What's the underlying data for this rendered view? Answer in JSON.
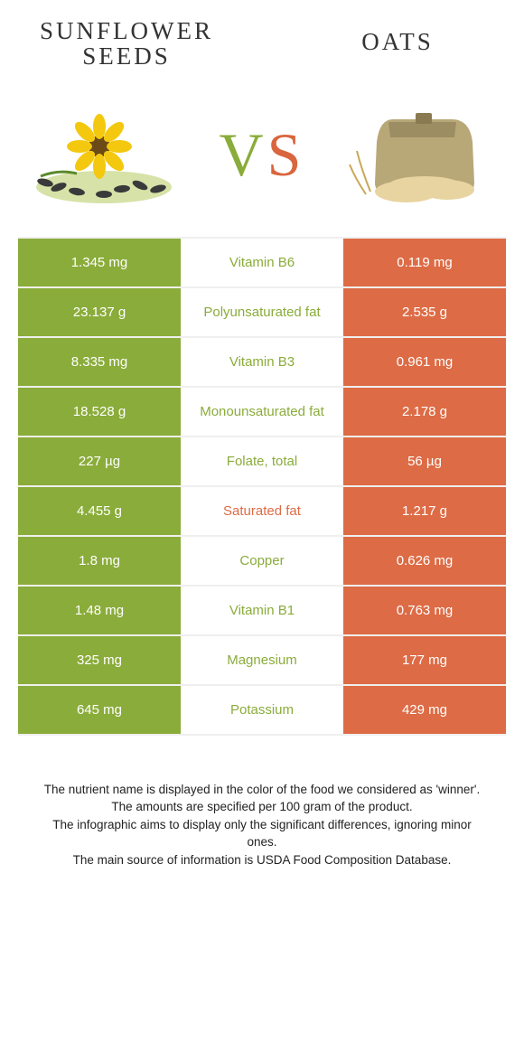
{
  "colors": {
    "green": "#8aac3a",
    "orange": "#dd6b45",
    "vs_green": "#8aac3a",
    "vs_orange": "#d9663e",
    "row_border": "#efefef",
    "text": "#333333"
  },
  "header": {
    "left_title_line1": "SUNFLOWER",
    "left_title_line2": "SEEDS",
    "right_title": "OATS",
    "vs_v": "V",
    "vs_s": "S"
  },
  "rows": [
    {
      "left": "1.345 mg",
      "label": "Vitamin B6",
      "right": "0.119 mg",
      "winner": "green"
    },
    {
      "left": "23.137 g",
      "label": "Polyunsaturated fat",
      "right": "2.535 g",
      "winner": "green"
    },
    {
      "left": "8.335 mg",
      "label": "Vitamin B3",
      "right": "0.961 mg",
      "winner": "green"
    },
    {
      "left": "18.528 g",
      "label": "Monounsaturated fat",
      "right": "2.178 g",
      "winner": "green"
    },
    {
      "left": "227 µg",
      "label": "Folate, total",
      "right": "56 µg",
      "winner": "green"
    },
    {
      "left": "4.455 g",
      "label": "Saturated fat",
      "right": "1.217 g",
      "winner": "orange"
    },
    {
      "left": "1.8 mg",
      "label": "Copper",
      "right": "0.626 mg",
      "winner": "green"
    },
    {
      "left": "1.48 mg",
      "label": "Vitamin B1",
      "right": "0.763 mg",
      "winner": "green"
    },
    {
      "left": "325 mg",
      "label": "Magnesium",
      "right": "177 mg",
      "winner": "green"
    },
    {
      "left": "645 mg",
      "label": "Potassium",
      "right": "429 mg",
      "winner": "green"
    }
  ],
  "footer": {
    "line1": "The nutrient name is displayed in the color of the food we considered as 'winner'.",
    "line2": "The amounts are specified per 100 gram of the product.",
    "line3": "The infographic aims to display only the significant differences, ignoring minor ones.",
    "line4": "The main source of information is USDA Food Composition Database."
  }
}
